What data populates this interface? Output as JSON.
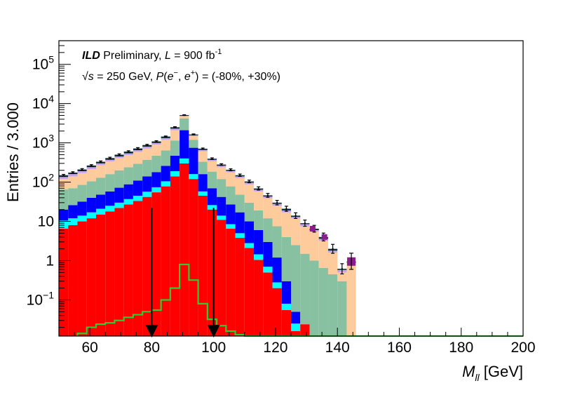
{
  "chart_data": {
    "type": "histogram",
    "scale": {
      "y": "log"
    },
    "xlim": [
      50,
      200
    ],
    "ylim": [
      0.012,
      400000
    ],
    "bin_width": 3,
    "x_bin_start": 50,
    "xlabel": "M",
    "xlabel_sub": "ll",
    "xlabel_unit": " [GeV]",
    "ylabel": "Entries / 3.000",
    "x_ticks": [
      60,
      80,
      100,
      120,
      140,
      160,
      180,
      200
    ],
    "x_tick_labels": [
      "60",
      "80",
      "100",
      "120",
      "140",
      "160",
      "180",
      "200"
    ],
    "y_ticks": [
      {
        "value": 0.1,
        "base": "10",
        "exp": "−1"
      },
      {
        "value": 1,
        "plain": "1"
      },
      {
        "value": 10,
        "plain": "10"
      },
      {
        "value": 100,
        "base": "10",
        "exp": "2"
      },
      {
        "value": 1000,
        "base": "10",
        "exp": "3"
      },
      {
        "value": 10000,
        "base": "10",
        "exp": "4"
      },
      {
        "value": 100000,
        "base": "10",
        "exp": "5"
      }
    ],
    "annotation": {
      "line1_bold": "ILD",
      "line1_rest": " Preliminary, ",
      "line1_L": "L",
      "line1_eq": " = 900 fb",
      "line1_sup": "-1",
      "line2_sqrt": "√",
      "line2_s": "s",
      "line2_mid": " = 250 GeV, ",
      "line2_P": "P",
      "line2_paren": "(",
      "line2_em": "e",
      "line2_em_sup": "−",
      "line2_comma": ", ",
      "line2_ep": "e",
      "line2_ep_sup": "+",
      "line2_tail": ") = (-80%, +30%)"
    },
    "cuts": [
      80,
      100
    ],
    "stack_order": [
      "red",
      "cyan",
      "blue",
      "lightgreen",
      "peach",
      "lavender",
      "darkteal",
      "purple"
    ],
    "colors": {
      "red": "#ff0000",
      "cyan": "#00ffff",
      "blue": "#0000ff",
      "lightgreen": "#88c1a1",
      "peach": "#fdcb9c",
      "lavender": "#c9a2f0",
      "darkteal": "#0b3034",
      "purple": "#8a1e8c",
      "signal": "#2ecc2e",
      "arrow": "#000000"
    },
    "stacks": [
      {
        "x": 50,
        "cum": [
          6.5,
          10.5,
          20,
          65,
          120,
          135,
          150
        ]
      },
      {
        "x": 53,
        "cum": [
          8.0,
          12,
          26,
          70,
          140,
          160,
          175
        ]
      },
      {
        "x": 56,
        "cum": [
          10,
          14,
          32,
          85,
          170,
          190,
          210
        ]
      },
      {
        "x": 59,
        "cum": [
          12,
          17,
          40,
          105,
          215,
          240,
          265
        ]
      },
      {
        "x": 62,
        "cum": [
          15,
          21,
          48,
          130,
          270,
          300,
          330
        ]
      },
      {
        "x": 65,
        "cum": [
          18,
          25,
          58,
          160,
          335,
          370,
          410
        ]
      },
      {
        "x": 68,
        "cum": [
          22,
          30,
          72,
          200,
          410,
          450,
          500
        ]
      },
      {
        "x": 71,
        "cum": [
          27,
          37,
          88,
          240,
          490,
          540,
          600
        ]
      },
      {
        "x": 74,
        "cum": [
          33,
          45,
          110,
          295,
          590,
          650,
          720
        ]
      },
      {
        "x": 77,
        "cum": [
          42,
          57,
          140,
          370,
          720,
          800,
          880
        ]
      },
      {
        "x": 80,
        "cum": [
          55,
          74,
          180,
          470,
          900,
          990,
          1090
        ]
      },
      {
        "x": 83,
        "cum": [
          78,
          105,
          260,
          640,
          1200,
          1320,
          1450
        ]
      },
      {
        "x": 86,
        "cum": [
          140,
          190,
          470,
          1150,
          2100,
          2300,
          2500
        ]
      },
      {
        "x": 89,
        "cum": [
          300,
          400,
          2100,
          4200,
          4700,
          4900,
          5100
        ]
      },
      {
        "x": 92,
        "cum": [
          120,
          160,
          750,
          1200,
          1480,
          1560,
          1640
        ]
      },
      {
        "x": 95,
        "cum": [
          45,
          58,
          160,
          330,
          610,
          660,
          710
        ]
      },
      {
        "x": 98,
        "cum": [
          20,
          26,
          70,
          185,
          340,
          370,
          395
        ]
      },
      {
        "x": 101,
        "cum": [
          11,
          14,
          42,
          120,
          240,
          262,
          280
        ]
      },
      {
        "x": 104,
        "cum": [
          6.5,
          8.5,
          27,
          78,
          178,
          194,
          206
        ]
      },
      {
        "x": 107,
        "cum": [
          3.8,
          5.0,
          17,
          48,
          128,
          140,
          150
        ]
      },
      {
        "x": 110,
        "cum": [
          2.1,
          2.8,
          10,
          30,
          88,
          97,
          104
        ]
      },
      {
        "x": 113,
        "cum": [
          1.05,
          1.45,
          6,
          19,
          58,
          64,
          69
        ]
      },
      {
        "x": 116,
        "cum": [
          0.5,
          0.7,
          3,
          12,
          39,
          43,
          46
        ]
      },
      {
        "x": 119,
        "cum": [
          0.2,
          0.28,
          1.2,
          7.5,
          25,
          28,
          30
        ]
      },
      {
        "x": 122,
        "cum": [
          0.055,
          0.08,
          0.3,
          4,
          17,
          19,
          21
        ]
      },
      {
        "x": 125,
        "cum": [
          0.016,
          0.025,
          0.05,
          2.5,
          12,
          13,
          14
        ]
      },
      {
        "x": 128,
        "cum": [
          0.024,
          0.024,
          0.024,
          1.5,
          7.5,
          8.5,
          9
        ]
      },
      {
        "x": 131,
        "cum": [
          0,
          0,
          0,
          1.0,
          5.5,
          6,
          6.5
        ]
      },
      {
        "x": 134,
        "cum": [
          0,
          0,
          0,
          0.65,
          3.2,
          3.6,
          4
        ]
      },
      {
        "x": 137,
        "cum": [
          0,
          0,
          0,
          0.45,
          1.6,
          1.8,
          2
        ]
      },
      {
        "x": 140,
        "cum": [
          0,
          0,
          0,
          0.3,
          0.5,
          0.58,
          0.62
        ]
      },
      {
        "x": 143,
        "cum": [
          0,
          0,
          0,
          0.012,
          0.85,
          0.9,
          0.95
        ]
      }
    ],
    "data_points": [
      {
        "x": 51.5,
        "y": 150,
        "err": 0.05
      },
      {
        "x": 54.5,
        "y": 175,
        "err": 0.05
      },
      {
        "x": 57.5,
        "y": 210,
        "err": 0.05
      },
      {
        "x": 60.5,
        "y": 265,
        "err": 0.05
      },
      {
        "x": 63.5,
        "y": 330,
        "err": 0.05
      },
      {
        "x": 66.5,
        "y": 410,
        "err": 0.05
      },
      {
        "x": 69.5,
        "y": 500,
        "err": 0.05
      },
      {
        "x": 72.5,
        "y": 600,
        "err": 0.05
      },
      {
        "x": 75.5,
        "y": 720,
        "err": 0.05
      },
      {
        "x": 78.5,
        "y": 880,
        "err": 0.04
      },
      {
        "x": 81.5,
        "y": 1090,
        "err": 0.04
      },
      {
        "x": 84.5,
        "y": 1450,
        "err": 0.03
      },
      {
        "x": 87.5,
        "y": 2500,
        "err": 0.03
      },
      {
        "x": 90.5,
        "y": 5100,
        "err": 0.02
      },
      {
        "x": 93.5,
        "y": 1640,
        "err": 0.03
      },
      {
        "x": 96.5,
        "y": 710,
        "err": 0.04
      },
      {
        "x": 99.5,
        "y": 395,
        "err": 0.05
      },
      {
        "x": 102.5,
        "y": 280,
        "err": 0.05
      },
      {
        "x": 105.5,
        "y": 206,
        "err": 0.06
      },
      {
        "x": 108.5,
        "y": 150,
        "err": 0.07
      },
      {
        "x": 111.5,
        "y": 104,
        "err": 0.08
      },
      {
        "x": 114.5,
        "y": 69,
        "err": 0.1
      },
      {
        "x": 117.5,
        "y": 46,
        "err": 0.12
      },
      {
        "x": 120.5,
        "y": 30,
        "err": 0.14
      },
      {
        "x": 123.5,
        "y": 21,
        "err": 0.16
      },
      {
        "x": 126.5,
        "y": 14,
        "err": 0.18
      },
      {
        "x": 129.5,
        "y": 9,
        "err": 0.2
      },
      {
        "x": 132.5,
        "y": 6.5,
        "err": 0.22
      },
      {
        "x": 135.5,
        "y": 4.0,
        "err": 0.26
      },
      {
        "x": 138.5,
        "y": 2.0,
        "err": 0.3
      },
      {
        "x": 141.5,
        "y": 0.62,
        "err": 0.35
      }
    ],
    "purple_markers": [
      {
        "x": 144.5,
        "y": 0.95
      },
      {
        "x": 132.0,
        "y": 6.5
      },
      {
        "x": 135.8,
        "y": 4.0
      }
    ],
    "signal": {
      "edges": [
        56,
        59,
        62,
        65,
        68,
        71,
        74,
        77,
        80,
        83,
        86,
        89,
        92,
        95,
        98,
        101,
        104,
        107,
        110,
        200
      ],
      "values": [
        0.014,
        0.02,
        0.024,
        0.026,
        0.03,
        0.036,
        0.042,
        0.05,
        0.055,
        0.1,
        0.2,
        0.8,
        0.32,
        0.08,
        0.032,
        0.022,
        0.016,
        0.013,
        0.012
      ]
    }
  }
}
